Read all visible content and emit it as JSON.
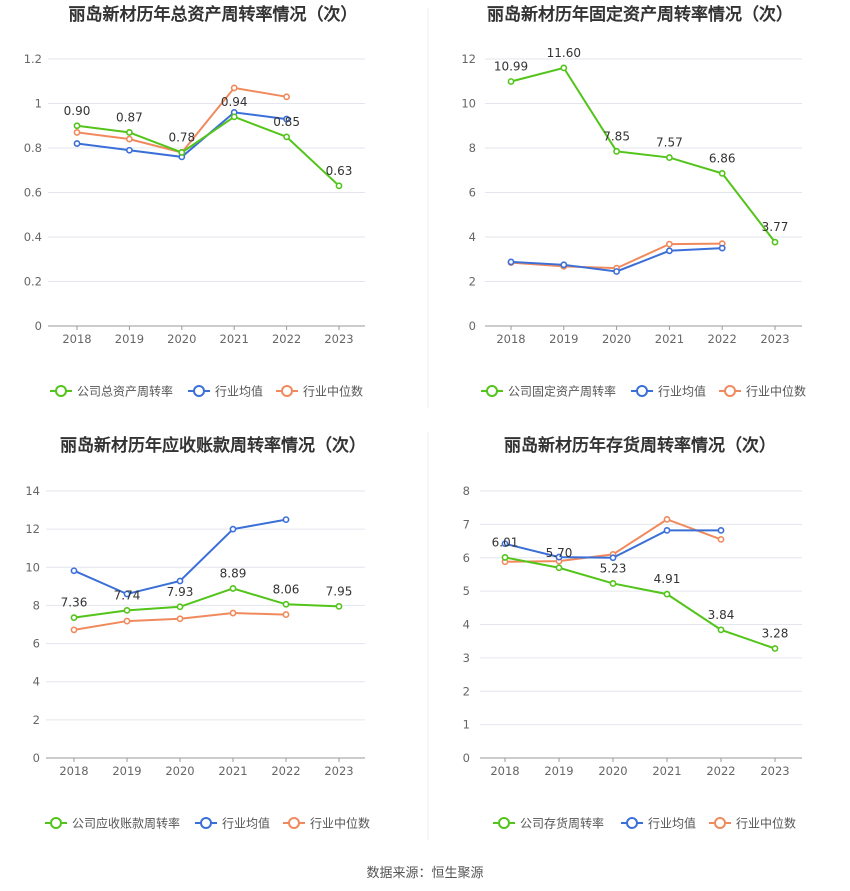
{
  "footer": {
    "source": "数据来源：恒生聚源"
  },
  "colors": {
    "company": "#52c41a",
    "avg": "#3b6fd8",
    "median": "#f08a5d",
    "grid": "#e3e6ee",
    "axis_text": "#666666",
    "title": "#333333"
  },
  "chart_data": [
    {
      "type": "line",
      "title": "丽岛新材历年总资产周转率情况（次）",
      "categories": [
        "2018",
        "2019",
        "2020",
        "2021",
        "2022",
        "2023"
      ],
      "ylim": [
        0,
        1.2
      ],
      "yticks": [
        "0",
        "0.2",
        "0.4",
        "0.6",
        "0.8",
        "1",
        "1.2"
      ],
      "series": [
        {
          "name": "公司总资产周转率",
          "key": "company",
          "values": [
            0.9,
            0.87,
            0.78,
            0.94,
            0.85,
            0.63
          ],
          "labels": [
            "0.90",
            "0.87",
            "0.78",
            "0.94",
            "0.85",
            "0.63"
          ]
        },
        {
          "name": "行业均值",
          "key": "avg",
          "values": [
            0.82,
            0.79,
            0.76,
            0.96,
            0.93,
            null
          ]
        },
        {
          "name": "行业中位数",
          "key": "median",
          "values": [
            0.87,
            0.84,
            0.78,
            1.07,
            1.03,
            null
          ]
        }
      ],
      "grid": true,
      "legend": "bottom"
    },
    {
      "type": "line",
      "title": "丽岛新材历年固定资产周转率情况（次）",
      "categories": [
        "2018",
        "2019",
        "2020",
        "2021",
        "2022",
        "2023"
      ],
      "ylim": [
        0,
        12
      ],
      "yticks": [
        "0",
        "2",
        "4",
        "6",
        "8",
        "10",
        "12"
      ],
      "series": [
        {
          "name": "公司固定资产周转率",
          "key": "company",
          "values": [
            10.99,
            11.6,
            7.85,
            7.57,
            6.86,
            3.77
          ],
          "labels": [
            "10.99",
            "11.60",
            "7.85",
            "7.57",
            "6.86",
            "3.77"
          ]
        },
        {
          "name": "行业均值",
          "key": "avg",
          "values": [
            2.88,
            2.75,
            2.45,
            3.38,
            3.5,
            null
          ]
        },
        {
          "name": "行业中位数",
          "key": "median",
          "values": [
            2.85,
            2.68,
            2.6,
            3.68,
            3.7,
            null
          ]
        }
      ],
      "grid": true,
      "legend": "bottom"
    },
    {
      "type": "line",
      "title": "丽岛新材历年应收账款周转率情况（次）",
      "categories": [
        "2018",
        "2019",
        "2020",
        "2021",
        "2022",
        "2023"
      ],
      "ylim": [
        0,
        14
      ],
      "yticks": [
        "0",
        "2",
        "4",
        "6",
        "8",
        "10",
        "12",
        "14"
      ],
      "series": [
        {
          "name": "公司应收账款周转率",
          "key": "company",
          "values": [
            7.36,
            7.74,
            7.93,
            8.89,
            8.06,
            7.95
          ],
          "labels": [
            "7.36",
            "7.74",
            "7.93",
            "8.89",
            "8.06",
            "7.95"
          ]
        },
        {
          "name": "行业均值",
          "key": "avg",
          "values": [
            9.82,
            8.6,
            9.28,
            12.0,
            12.5,
            null
          ]
        },
        {
          "name": "行业中位数",
          "key": "median",
          "values": [
            6.72,
            7.18,
            7.3,
            7.6,
            7.52,
            null
          ]
        }
      ],
      "grid": true,
      "legend": "bottom"
    },
    {
      "type": "line",
      "title": "丽岛新材历年存货周转率情况（次）",
      "categories": [
        "2018",
        "2019",
        "2020",
        "2021",
        "2022",
        "2023"
      ],
      "ylim": [
        0,
        8
      ],
      "yticks": [
        "0",
        "1",
        "2",
        "3",
        "4",
        "5",
        "6",
        "7",
        "8"
      ],
      "series": [
        {
          "name": "公司存货周转率",
          "key": "company",
          "values": [
            6.01,
            5.7,
            5.23,
            4.91,
            3.84,
            3.28
          ],
          "labels": [
            "6.01",
            "5.70",
            "5.23",
            "4.91",
            "3.84",
            "3.28"
          ]
        },
        {
          "name": "行业均值",
          "key": "avg",
          "values": [
            6.42,
            6.02,
            6.0,
            6.82,
            6.82,
            null
          ]
        },
        {
          "name": "行业中位数",
          "key": "median",
          "values": [
            5.88,
            5.9,
            6.1,
            7.15,
            6.55,
            null
          ]
        }
      ],
      "grid": true,
      "legend": "bottom"
    }
  ]
}
